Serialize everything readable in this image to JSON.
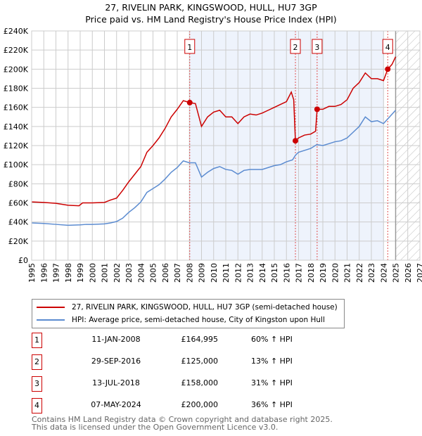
{
  "chart_data": {
    "type": "line",
    "title": "27, RIVELIN PARK, KINGSWOOD, HULL, HU7 3GP",
    "subtitle": "Price paid vs. HM Land Registry's House Price Index (HPI)",
    "xlim": [
      1995,
      2027
    ],
    "ylim": [
      0,
      240000
    ],
    "yticks": [
      0,
      20000,
      40000,
      60000,
      80000,
      100000,
      120000,
      140000,
      160000,
      180000,
      200000,
      220000,
      240000
    ],
    "ytick_labels": [
      "£0",
      "£20K",
      "£40K",
      "£60K",
      "£80K",
      "£100K",
      "£120K",
      "£140K",
      "£160K",
      "£180K",
      "£200K",
      "£220K",
      "£240K"
    ],
    "xticks": [
      "1995",
      "1996",
      "1997",
      "1998",
      "1999",
      "2000",
      "2001",
      "2002",
      "2003",
      "2004",
      "2005",
      "2006",
      "2007",
      "2008",
      "2009",
      "2010",
      "2011",
      "2012",
      "2013",
      "2014",
      "2015",
      "2016",
      "2017",
      "2018",
      "2019",
      "2020",
      "2021",
      "2022",
      "2023",
      "2024",
      "2025",
      "2026",
      "2027"
    ],
    "grid": true,
    "shaded_range": [
      2008.03,
      2024.05
    ],
    "forecast_from": 2025.0,
    "series": [
      {
        "name": "27, RIVELIN PARK, KINGSWOOD, HULL, HU7 3GP (semi-detached house)",
        "color": "#cc0000",
        "x": [
          1995,
          1996,
          1997,
          1998,
          1998.9,
          1999.2,
          2000,
          2001,
          2001.5,
          2002,
          2002.5,
          2003,
          2003.5,
          2004,
          2004.5,
          2005,
          2005.5,
          2006,
          2006.5,
          2007,
          2007.5,
          2008.03,
          2008.5,
          2009,
          2009.5,
          2010,
          2010.5,
          2011,
          2011.5,
          2012,
          2012.5,
          2013,
          2013.5,
          2014,
          2014.5,
          2015,
          2015.5,
          2016,
          2016.4,
          2016.6,
          2016.74,
          2017,
          2017.5,
          2018,
          2018.4,
          2018.53,
          2019,
          2019.5,
          2020,
          2020.5,
          2021,
          2021.5,
          2022,
          2022.5,
          2023,
          2023.5,
          2024,
          2024.35,
          2024.7,
          2025
        ],
        "y": [
          61000,
          60500,
          59500,
          57500,
          57000,
          60000,
          60000,
          60500,
          63000,
          65000,
          73000,
          82000,
          90000,
          98000,
          113000,
          120000,
          128000,
          138000,
          150000,
          158000,
          167000,
          164995,
          164000,
          140000,
          150000,
          155000,
          157000,
          150000,
          150000,
          143000,
          150000,
          153000,
          152000,
          154000,
          157000,
          160000,
          163000,
          166000,
          176000,
          168000,
          125000,
          128000,
          131000,
          132000,
          135000,
          158000,
          158000,
          161000,
          161000,
          163000,
          168000,
          180000,
          186000,
          196000,
          190000,
          190000,
          188000,
          200000,
          205000,
          213000
        ]
      },
      {
        "name": "HPI: Average price, semi-detached house, City of Kingston upon Hull",
        "color": "#5b8bd0",
        "x": [
          1995,
          1996,
          1997,
          1998,
          1999,
          1999.5,
          2000,
          2001,
          2001.5,
          2002,
          2002.5,
          2003,
          2003.5,
          2004,
          2004.5,
          2005,
          2005.5,
          2006,
          2006.5,
          2007,
          2007.5,
          2008,
          2008.5,
          2009,
          2009.5,
          2010,
          2010.5,
          2011,
          2011.5,
          2012,
          2012.5,
          2013,
          2013.5,
          2014,
          2014.5,
          2015,
          2015.5,
          2016,
          2016.5,
          2016.75,
          2017,
          2017.5,
          2018,
          2018.5,
          2019,
          2019.5,
          2020,
          2020.5,
          2021,
          2021.5,
          2022,
          2022.5,
          2023,
          2023.5,
          2024,
          2024.5,
          2025
        ],
        "y": [
          39000,
          38500,
          37500,
          36500,
          37000,
          37500,
          37500,
          38000,
          39000,
          40500,
          44000,
          50000,
          55000,
          61000,
          71000,
          75000,
          79000,
          85000,
          92000,
          97000,
          104000,
          102000,
          102000,
          87000,
          92000,
          96000,
          98000,
          95000,
          94000,
          90000,
          94000,
          95000,
          95000,
          95000,
          97000,
          99000,
          100000,
          103000,
          105000,
          110000,
          113000,
          115000,
          117000,
          121000,
          120000,
          122000,
          124000,
          125000,
          128000,
          134000,
          140000,
          150000,
          145000,
          146000,
          143000,
          150000,
          157000
        ]
      }
    ],
    "sales": [
      {
        "label": "1",
        "x": 2008.03,
        "y": 164995,
        "date": "11-JAN-2008",
        "price": "£164,995",
        "hpi": "60% ↑ HPI"
      },
      {
        "label": "2",
        "x": 2016.74,
        "y": 125000,
        "date": "29-SEP-2016",
        "price": "£125,000",
        "hpi": "13% ↑ HPI"
      },
      {
        "label": "3",
        "x": 2018.53,
        "y": 158000,
        "date": "13-JUL-2018",
        "price": "£158,000",
        "hpi": "31% ↑ HPI"
      },
      {
        "label": "4",
        "x": 2024.35,
        "y": 200000,
        "date": "07-MAY-2024",
        "price": "£200,000",
        "hpi": "36% ↑ HPI"
      }
    ]
  },
  "legend": {
    "property": "27, RIVELIN PARK, KINGSWOOD, HULL, HU7 3GP (semi-detached house)",
    "hpi": "HPI: Average price, semi-detached house, City of Kingston upon Hull"
  },
  "footer": {
    "line1": "Contains HM Land Registry data © Crown copyright and database right 2025.",
    "line2": "This data is licensed under the Open Government Licence v3.0."
  }
}
